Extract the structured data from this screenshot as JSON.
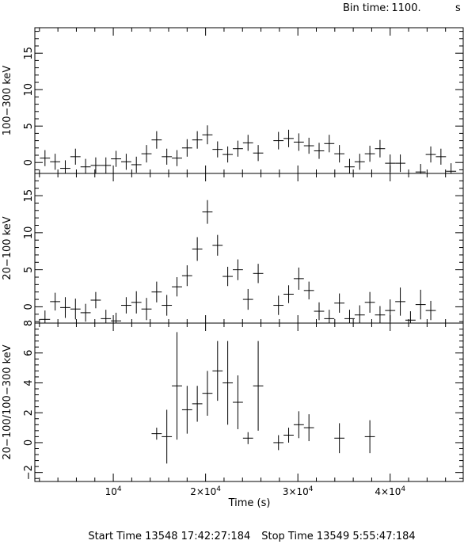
{
  "header": {
    "bin_label": "Bin time:",
    "bin_value": "1100.",
    "bin_unit": "s"
  },
  "footer": {
    "start_label": "Start Time 13548 17:42:27:184",
    "stop_label": "Stop Time 13549  5:55:47:184"
  },
  "colors": {
    "ink": "#000000",
    "background": "#ffffff"
  },
  "chart_data": [
    {
      "type": "scatter",
      "ylabel": "100−300 keV",
      "xlim": [
        1500,
        48000
      ],
      "ylim": [
        -1.5,
        18.5
      ],
      "yticks": [
        "0",
        "5",
        "10",
        "15"
      ],
      "ytick_values": [
        0,
        5,
        10,
        15
      ],
      "error_bars": true,
      "points": [
        [
          2600,
          0.6,
          1.1
        ],
        [
          3700,
          0.1,
          1.1
        ],
        [
          4800,
          -0.8,
          1.1
        ],
        [
          5900,
          0.8,
          1.1
        ],
        [
          7000,
          -0.6,
          1.1
        ],
        [
          8100,
          -0.4,
          1.1
        ],
        [
          9200,
          -0.4,
          1.1
        ],
        [
          10300,
          0.5,
          1.1
        ],
        [
          11400,
          0.1,
          1.1
        ],
        [
          12500,
          -0.3,
          1.1
        ],
        [
          13600,
          1.2,
          1.2
        ],
        [
          14700,
          3.1,
          1.2
        ],
        [
          15800,
          0.8,
          1.1
        ],
        [
          16900,
          0.6,
          1.1
        ],
        [
          18000,
          2.0,
          1.2
        ],
        [
          19100,
          3.1,
          1.2
        ],
        [
          20200,
          3.8,
          1.3
        ],
        [
          21300,
          1.8,
          1.1
        ],
        [
          22400,
          1.1,
          1.1
        ],
        [
          23500,
          1.9,
          1.1
        ],
        [
          24600,
          2.7,
          1.1
        ],
        [
          25700,
          1.3,
          1.1
        ],
        [
          27900,
          3.0,
          1.2
        ],
        [
          29000,
          3.3,
          1.2
        ],
        [
          30100,
          2.8,
          1.2
        ],
        [
          31200,
          2.3,
          1.1
        ],
        [
          32300,
          1.6,
          1.1
        ],
        [
          33400,
          2.6,
          1.2
        ],
        [
          34500,
          1.2,
          1.2
        ],
        [
          35600,
          -0.6,
          1.1
        ],
        [
          36700,
          0.1,
          1.1
        ],
        [
          37800,
          1.2,
          1.1
        ],
        [
          38900,
          1.9,
          1.2
        ],
        [
          40000,
          -0.1,
          1.2
        ],
        [
          41100,
          -0.1,
          1.2
        ],
        [
          43300,
          -1.3,
          1.1
        ],
        [
          44400,
          1.1,
          1.1
        ],
        [
          45500,
          0.8,
          1.1
        ],
        [
          46600,
          -1.2,
          1.1
        ]
      ]
    },
    {
      "type": "scatter",
      "ylabel": "20−100 keV",
      "xlim": [
        1500,
        48000
      ],
      "ylim": [
        -2.2,
        18
      ],
      "yticks": [
        "0",
        "5",
        "10",
        "15"
      ],
      "ytick_values": [
        0,
        5,
        10,
        15
      ],
      "error_bars": true,
      "points": [
        [
          2600,
          -1.7,
          1.2
        ],
        [
          3700,
          0.7,
          1.2
        ],
        [
          4800,
          -0.1,
          1.4
        ],
        [
          5900,
          -0.3,
          1.4
        ],
        [
          7000,
          -0.8,
          1.2
        ],
        [
          8100,
          0.9,
          1.1
        ],
        [
          9200,
          -1.6,
          1.2
        ],
        [
          10300,
          -1.9,
          1.1
        ],
        [
          11400,
          0.2,
          1.1
        ],
        [
          12500,
          0.6,
          1.5
        ],
        [
          13600,
          -0.3,
          1.5
        ],
        [
          14700,
          2.0,
          1.4
        ],
        [
          15800,
          0.2,
          1.4
        ],
        [
          16900,
          2.7,
          1.3
        ],
        [
          18000,
          4.2,
          1.4
        ],
        [
          19100,
          7.8,
          1.6
        ],
        [
          20200,
          12.8,
          1.6
        ],
        [
          21300,
          8.3,
          1.4
        ],
        [
          22400,
          4.1,
          1.3
        ],
        [
          23500,
          5.0,
          1.4
        ],
        [
          24600,
          1.0,
          1.4
        ],
        [
          25700,
          4.5,
          1.3
        ],
        [
          27900,
          0.2,
          1.3
        ],
        [
          29000,
          1.7,
          1.2
        ],
        [
          30100,
          3.8,
          1.5
        ],
        [
          31200,
          2.2,
          1.2
        ],
        [
          32300,
          -0.6,
          1.2
        ],
        [
          33400,
          -1.6,
          1.2
        ],
        [
          34500,
          0.5,
          1.3
        ],
        [
          35600,
          -1.6,
          1.2
        ],
        [
          36700,
          -1.1,
          1.3
        ],
        [
          37800,
          0.6,
          1.4
        ],
        [
          38900,
          -1.1,
          1.2
        ],
        [
          40000,
          -0.5,
          1.5
        ],
        [
          41100,
          0.7,
          1.9
        ],
        [
          42200,
          -1.8,
          1.2
        ],
        [
          43300,
          0.3,
          2.0
        ],
        [
          44400,
          -0.5,
          1.3
        ]
      ]
    },
    {
      "type": "scatter",
      "ylabel": "20−100/100−300 keV",
      "xlabel": "Time (s)",
      "xlim": [
        1500,
        48000
      ],
      "ylim": [
        -2.6,
        8.0
      ],
      "yticks": [
        "−2",
        "0",
        "2",
        "4",
        "6",
        "8"
      ],
      "ytick_values": [
        -2,
        0,
        2,
        4,
        6,
        8
      ],
      "xticks": [
        "10^4",
        "2×10^4",
        "3×10^4",
        "4×10^4"
      ],
      "xtick_values": [
        10000,
        20000,
        30000,
        40000
      ],
      "error_bars": true,
      "points": [
        [
          14700,
          0.6,
          0.4
        ],
        [
          15800,
          0.4,
          1.8
        ],
        [
          16900,
          3.8,
          3.6
        ],
        [
          18000,
          2.2,
          1.6
        ],
        [
          19100,
          2.6,
          1.2
        ],
        [
          20200,
          3.3,
          1.5
        ],
        [
          21300,
          4.8,
          2.0
        ],
        [
          22400,
          4.0,
          2.8
        ],
        [
          23500,
          2.7,
          1.8
        ],
        [
          24600,
          0.3,
          0.4
        ],
        [
          25700,
          3.8,
          3.0
        ],
        [
          27900,
          0.0,
          0.5
        ],
        [
          29000,
          0.5,
          0.5
        ],
        [
          30100,
          1.2,
          0.9
        ],
        [
          31200,
          1.0,
          0.9
        ],
        [
          34500,
          0.3,
          1.0
        ],
        [
          37800,
          0.4,
          1.1
        ]
      ]
    }
  ]
}
